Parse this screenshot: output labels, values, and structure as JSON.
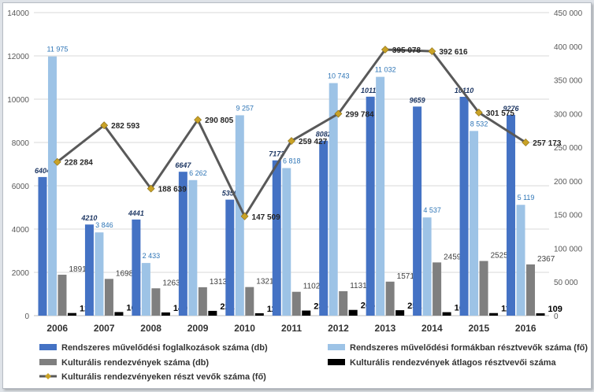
{
  "chart_data": {
    "type": "bar",
    "categories": [
      "2006",
      "2007",
      "2008",
      "2009",
      "2010",
      "2011",
      "2012",
      "2013",
      "2014",
      "2015",
      "2016"
    ],
    "series": [
      {
        "name": "Rendszeres művelődési foglalkozások száma (db)",
        "axis": "left",
        "color": "#4472c4",
        "values": [
          6404,
          4210,
          4441,
          6647,
          5359,
          7173,
          8082,
          10115,
          9659,
          10110,
          9276
        ],
        "labels": [
          "6404",
          "4210",
          "4441",
          "6647",
          "5359",
          "7173",
          "8082",
          "10115",
          "9659",
          "10110",
          "9276"
        ]
      },
      {
        "name": "Rendszeres művelődési formákban résztvevők száma (fő)",
        "axis": "left",
        "color": "#9dc3e6",
        "values": [
          11975,
          3846,
          2433,
          6262,
          9257,
          6818,
          10743,
          11032,
          4537,
          8532,
          5119
        ],
        "labels": [
          "11 975",
          "3 846",
          "2 433",
          "6 262",
          "9 257",
          "6 818",
          "10 743",
          "11 032",
          "4 537",
          "8 532",
          "5 119"
        ]
      },
      {
        "name": "Kulturális rendezvények száma (db)",
        "axis": "left",
        "color": "#7f7f7f",
        "values": [
          1891,
          1698,
          1263,
          1313,
          1321,
          1102,
          1131,
          1571,
          2459,
          2525,
          2367
        ],
        "labels": [
          "1891",
          "1698",
          "1263",
          "1313",
          "1321",
          "1102",
          "1131",
          "1571",
          "2459",
          "2525",
          "2367"
        ]
      },
      {
        "name": "Kulturális rendezvények átlagos résztvevői száma",
        "axis": "left",
        "color": "#000000",
        "values": [
          121,
          166,
          149,
          221,
          112,
          235,
          265,
          251,
          160,
          119,
          109
        ],
        "labels": [
          "121",
          "166",
          "149",
          "221",
          "112",
          "235",
          "265",
          "251",
          "160",
          "119",
          "109"
        ]
      },
      {
        "name": "Kulturális rendezvényeken részt vevők száma (fő)",
        "type": "line",
        "axis": "right",
        "color": "#595959",
        "marker_color": "#c9a227",
        "values": [
          228284,
          282593,
          188639,
          290805,
          147509,
          259427,
          299784,
          395078,
          392616,
          301575,
          257173
        ],
        "labels": [
          "228 284",
          "282 593",
          "188 639",
          "290 805",
          "147 509",
          "259 427",
          "299 784",
          "395 078",
          "392 616",
          "301 575",
          "257 173"
        ]
      }
    ],
    "y_left": {
      "min": 0,
      "max": 14000,
      "ticks": [
        "0",
        "2000",
        "4000",
        "6000",
        "8000",
        "10000",
        "12000",
        "14000"
      ]
    },
    "y_right": {
      "min": 0,
      "max": 450000,
      "ticks": [
        "0",
        "50 000",
        "100 000",
        "150 000",
        "200 000",
        "250 000",
        "300 000",
        "350 000",
        "400 000",
        "450 000"
      ]
    },
    "grid": true,
    "legend_position": "bottom",
    "title": "",
    "xlabel": "",
    "ylabel": ""
  }
}
